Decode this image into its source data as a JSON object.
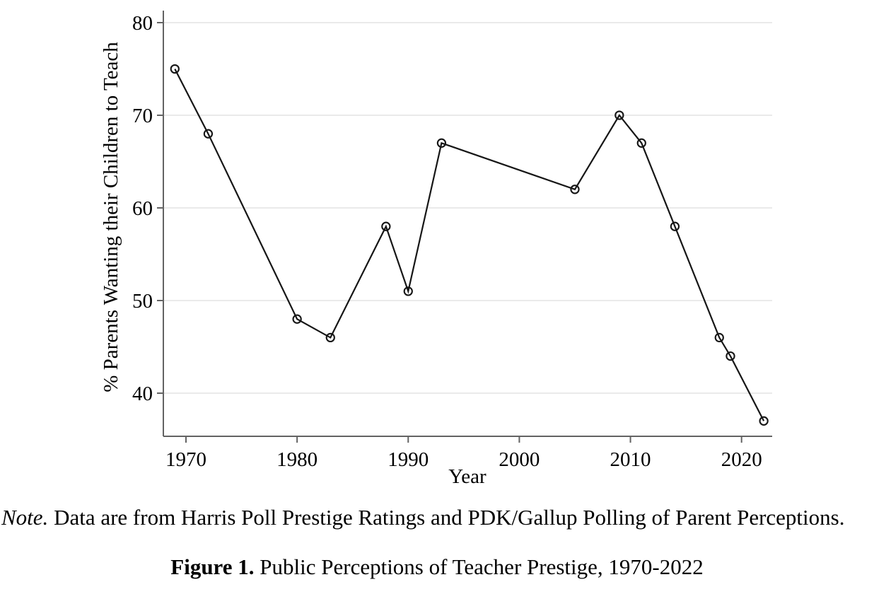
{
  "chart_data": {
    "type": "line",
    "title": "",
    "xlabel": "Year",
    "ylabel": "% Parents Wanting their Children to Teach",
    "x_ticks": [
      1970,
      1980,
      1990,
      2000,
      2010,
      2020
    ],
    "y_ticks": [
      40,
      50,
      60,
      70,
      80
    ],
    "xlim": [
      1968,
      2023
    ],
    "ylim": [
      35.3,
      81.3
    ],
    "grid": "horizontal-only",
    "legend": "none",
    "marker": "open-circle",
    "series": [
      {
        "name": "% Parents Wanting their Children to Teach",
        "points": [
          {
            "x": 1969,
            "y": 75
          },
          {
            "x": 1972,
            "y": 68
          },
          {
            "x": 1980,
            "y": 48
          },
          {
            "x": 1983,
            "y": 46
          },
          {
            "x": 1988,
            "y": 58
          },
          {
            "x": 1990,
            "y": 51
          },
          {
            "x": 1993,
            "y": 67
          },
          {
            "x": 2005,
            "y": 62
          },
          {
            "x": 2009,
            "y": 70
          },
          {
            "x": 2011,
            "y": 67
          },
          {
            "x": 2014,
            "y": 58
          },
          {
            "x": 2018,
            "y": 46
          },
          {
            "x": 2019,
            "y": 44
          },
          {
            "x": 2022,
            "y": 37
          }
        ]
      }
    ]
  },
  "note": {
    "prefix": "Note.",
    "text": " Data are from Harris Poll Prestige Ratings and PDK/Gallup Polling of Parent Perceptions."
  },
  "caption": {
    "prefix": "Figure 1.",
    "text": " Public Perceptions of Teacher Prestige, 1970-2022"
  },
  "colors": {
    "axis": "#636363",
    "grid": "#e4e4e4",
    "line": "#161616",
    "text": "#000000"
  }
}
